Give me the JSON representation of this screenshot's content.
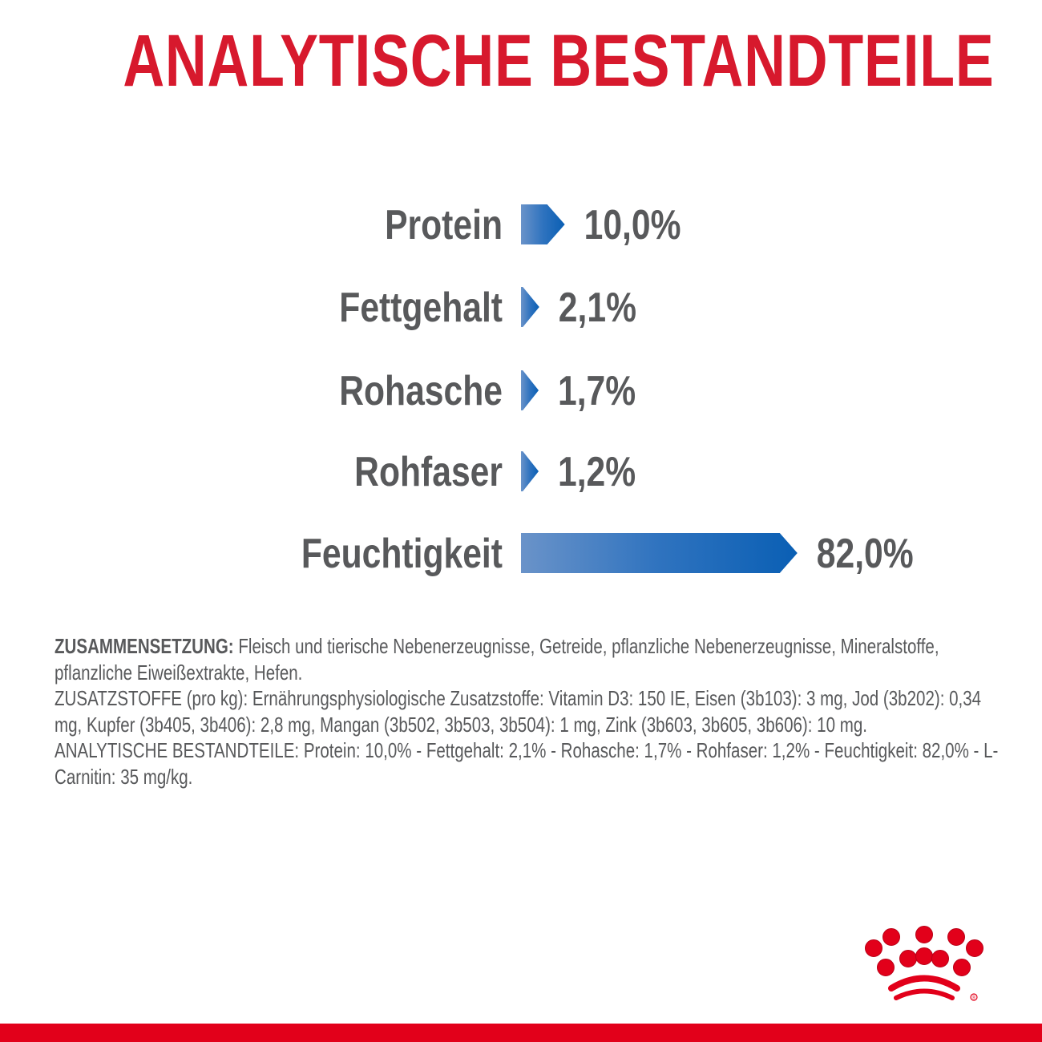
{
  "title": "ANALYTISCHE BESTANDTEILE",
  "colors": {
    "title": "#d7192d",
    "bar_light": "#6a93c9",
    "bar_dark": "#0a5fb4",
    "text": "#58595b",
    "brand_red": "#e2001a"
  },
  "chart_data": {
    "type": "bar",
    "orientation": "horizontal",
    "categories": [
      "Protein",
      "Fettgehalt",
      "Rohasche",
      "Rohfaser",
      "Feuchtigkeit"
    ],
    "values": [
      10.0,
      2.1,
      1.7,
      1.2,
      82.0
    ],
    "value_labels": [
      "10,0%",
      "2,1%",
      "1,7%",
      "1,2%",
      "82,0%"
    ],
    "unit": "%",
    "grid": false
  },
  "composition": {
    "heading": "ZUSAMMENSETZUNG:",
    "text": "Fleisch und tierische Nebenerzeugnisse, Getreide, pflanzliche Nebenerzeugnisse, Mineralstoffe, pflanzliche Eiweißextrakte, Hefen.",
    "additives": "ZUSATZSTOFFE (pro kg): Ernährungsphysiologische Zusatzstoffe: Vitamin D3: 150 IE, Eisen (3b103): 3 mg, Jod (3b202): 0,34 mg, Kupfer (3b405, 3b406): 2,8 mg, Mangan (3b502, 3b503, 3b504): 1 mg, Zink (3b603, 3b605, 3b606): 10 mg.",
    "analytical": "ANALYTISCHE BESTANDTEILE: Protein: 10,0% - Fettgehalt: 2,1% - Rohasche: 1,7% - Rohfaser: 1,2% - Feuchtigkeit: 82,0% - L-Carnitin: 35 mg/kg."
  },
  "logo": {
    "name": "royal-canin-crown-logo",
    "mark": "®"
  }
}
